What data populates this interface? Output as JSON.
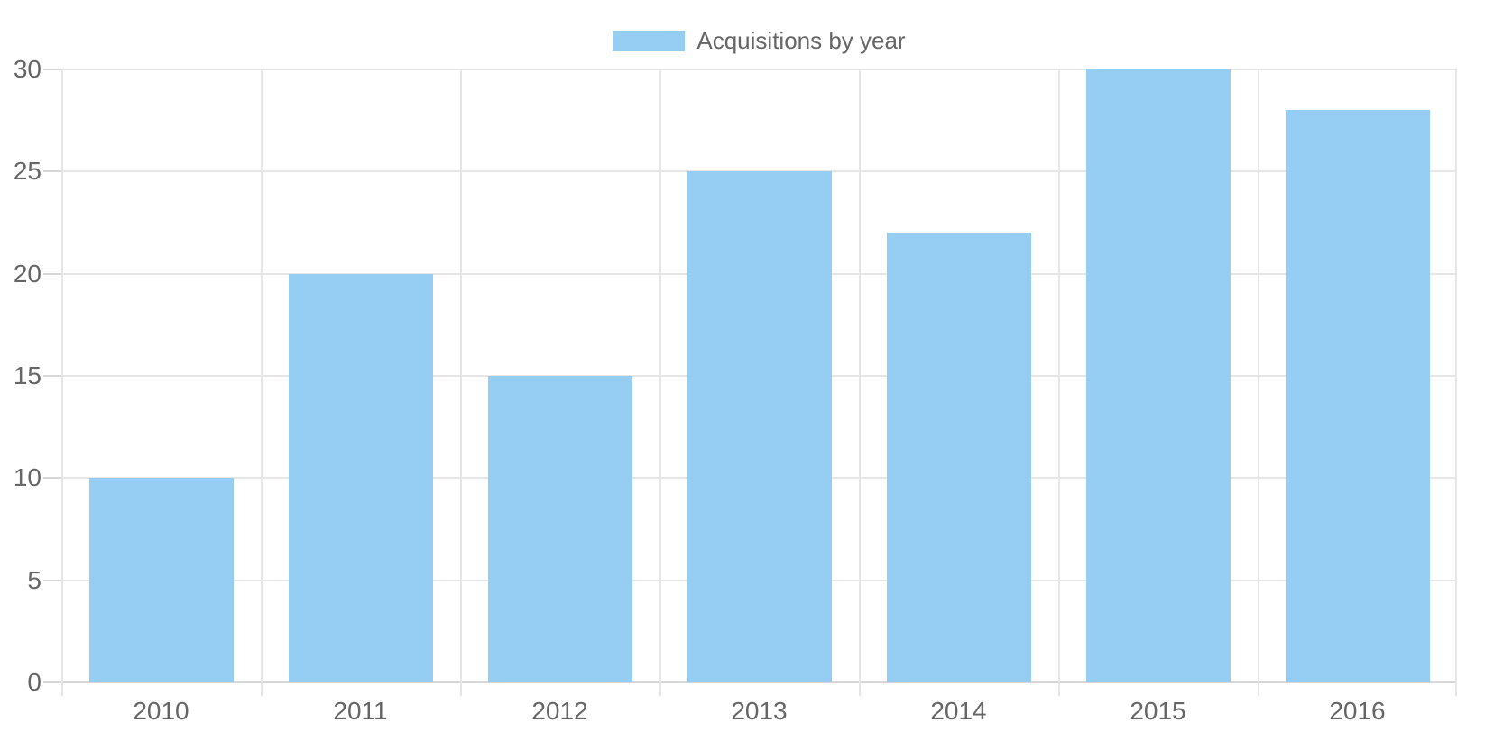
{
  "legend": {
    "label": "Acquisitions by year"
  },
  "chart_data": {
    "type": "bar",
    "title": "",
    "categories": [
      "2010",
      "2011",
      "2012",
      "2013",
      "2014",
      "2015",
      "2016"
    ],
    "values": [
      10,
      20,
      15,
      25,
      22,
      30,
      28
    ],
    "series": [
      {
        "name": "Acquisitions by year",
        "values": [
          10,
          20,
          15,
          25,
          22,
          30,
          28
        ]
      }
    ],
    "xlabel": "",
    "ylabel": "",
    "ylim": [
      0,
      30
    ],
    "yticks": [
      0,
      5,
      10,
      15,
      20,
      25,
      30
    ],
    "grid": "on",
    "legend_position": "top-center",
    "colors": {
      "bar": "#96CEF3",
      "grid": "#E6E6E6",
      "axis": "#D6D6D6",
      "text": "#666666",
      "background": "#FFFFFF"
    }
  }
}
